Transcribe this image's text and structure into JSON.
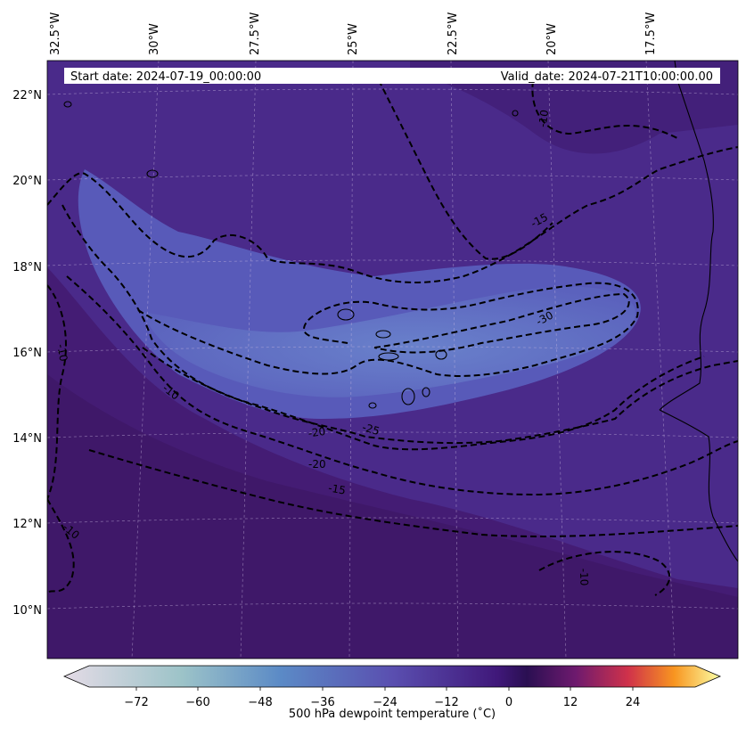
{
  "header": {
    "start_date": "Start date: 2024-07-19_00:00:00",
    "valid_date": "Valid_date: 2024-07-21T10:00:00.00"
  },
  "axes": {
    "lon_labels": [
      "32.5°W",
      "30°W",
      "27.5°W",
      "25°W",
      "22.5°W",
      "20°W",
      "17.5°W"
    ],
    "lat_labels": [
      "22°N",
      "20°N",
      "18°N",
      "16°N",
      "14°N",
      "12°N",
      "10°N"
    ]
  },
  "contour_labels": [
    "-15",
    "-30",
    "-25",
    "-20",
    "-20",
    "-15",
    "-10",
    "-10",
    "-10",
    "-10",
    "-10"
  ],
  "colorbar": {
    "label": "500 hPa dewpoint temperature (˚C)",
    "ticks": [
      "−72",
      "−60",
      "−48",
      "−36",
      "−24",
      "−12",
      "0",
      "12",
      "24"
    ],
    "colors": {
      "low": "#e4dbe6",
      "mid1": "#9cc3c8",
      "mid2": "#5b8ac6",
      "mid3": "#5a4fb0",
      "mid4": "#40187a",
      "zero": "#2a0f52",
      "warm1": "#6e1a6e",
      "warm2": "#d0324a",
      "warm3": "#f89520",
      "high": "#fcfea4"
    }
  },
  "map_colors": {
    "background": "#4a2a8a",
    "south_dark": "#421b6e",
    "dry_band": "#5f6cc2",
    "dry_core": "#6275c6"
  }
}
